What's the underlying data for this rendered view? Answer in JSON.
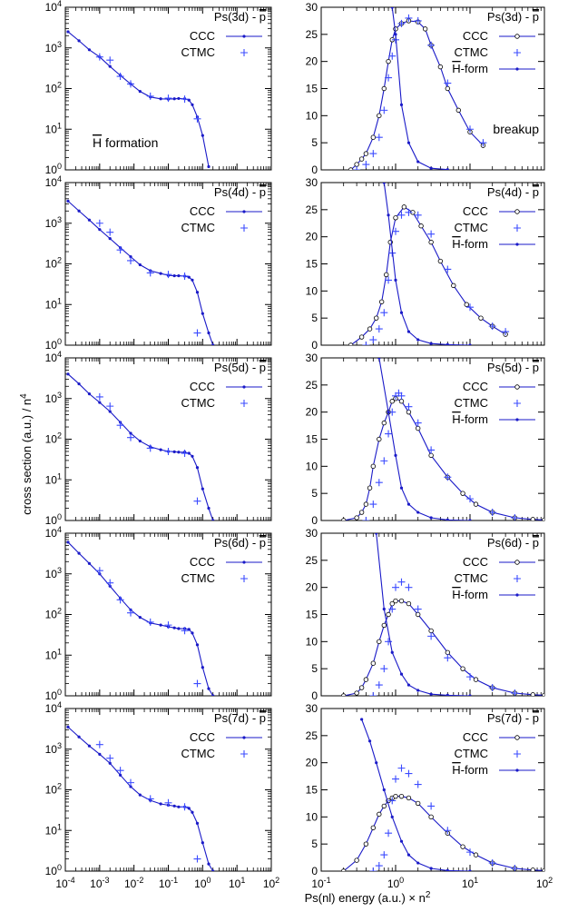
{
  "colors": {
    "ccc": "#1a1ac8",
    "ctmc": "#3b4bff",
    "hform": "#1a1ac8",
    "frame": "#000000"
  },
  "layout_text": {
    "ylabel": "cross section (a.u.) / n",
    "ylabel_sup": "4",
    "xlabel": "Ps(nl) energy (a.u.) × n",
    "xlabel_sup": "2",
    "legend_ctmc": "CTMC",
    "legend_ccc": "CCC",
    "legend_hform": "H-form",
    "annot_hform": "H formation",
    "annot_breakup": "breakup"
  },
  "left_axis": {
    "xscale": "log",
    "yscale": "log",
    "xlim": [
      0.0001,
      100
    ],
    "ylim": [
      1,
      10000
    ],
    "xticks": [
      "10^-4",
      "10^-3",
      "10^-2",
      "10^-1",
      "10^0",
      "10^1",
      "10^2"
    ],
    "yticks": [
      "10^0",
      "10^1",
      "10^2",
      "10^3",
      "10^4"
    ]
  },
  "right_axis": {
    "xscale": "log",
    "yscale": "linear",
    "xlim": [
      0.1,
      100
    ],
    "ylim": [
      0,
      30
    ],
    "xticks": [
      "10^-1",
      "10^0",
      "10^1",
      "10^2"
    ],
    "yticks": [
      "0",
      "5",
      "10",
      "15",
      "20",
      "25",
      "30"
    ]
  },
  "chart_data": [
    {
      "type": "line",
      "panel": "left",
      "title": "Ps(3d) - p",
      "annotation": "H formation",
      "series": [
        {
          "name": "CCC",
          "x": [
            0.00012,
            0.00025,
            0.0005,
            0.001,
            0.002,
            0.004,
            0.008,
            0.015,
            0.03,
            0.06,
            0.1,
            0.15,
            0.2,
            0.3,
            0.4,
            0.5,
            0.7,
            1.0,
            1.5
          ],
          "values": [
            2500,
            1500,
            900,
            600,
            350,
            210,
            130,
            85,
            62,
            56,
            55,
            56,
            57,
            56,
            52,
            40,
            20,
            7,
            1.2
          ]
        },
        {
          "name": "CTMC",
          "x": [
            0.001,
            0.002,
            0.004,
            0.008,
            0.03,
            0.1,
            0.3,
            0.7
          ],
          "values": [
            600,
            500,
            200,
            130,
            65,
            58,
            55,
            18
          ]
        }
      ]
    },
    {
      "type": "line",
      "panel": "right",
      "title": "Ps(3d) - p",
      "annotation": "breakup",
      "series": [
        {
          "name": "CCC",
          "x": [
            0.25,
            0.3,
            0.35,
            0.4,
            0.5,
            0.6,
            0.7,
            0.8,
            0.9,
            1.0,
            1.2,
            1.5,
            2.0,
            2.5,
            3.0,
            4.0,
            5.0,
            7.0,
            10.0,
            15.0
          ],
          "values": [
            0,
            1,
            2,
            3,
            6,
            10,
            15,
            20,
            24,
            26,
            27,
            27.5,
            27.3,
            26,
            23,
            19,
            15,
            11,
            7,
            4.5
          ]
        },
        {
          "name": "CTMC",
          "x": [
            0.3,
            0.4,
            0.5,
            0.6,
            0.7,
            0.8,
            0.9,
            1.0,
            1.2,
            1.5,
            2.0,
            3.0,
            5.0,
            10.0,
            15.0
          ],
          "values": [
            0,
            1,
            3,
            6,
            11,
            17,
            21,
            24,
            27,
            28,
            27.5,
            23,
            16,
            7.5,
            5
          ]
        },
        {
          "name": "H-form",
          "x": [
            0.9,
            1.0,
            1.2,
            1.5,
            2.0,
            3.0,
            5.0
          ],
          "values": [
            30,
            25,
            12,
            5,
            1.5,
            0.3,
            0.05
          ]
        }
      ]
    },
    {
      "type": "line",
      "panel": "left",
      "title": "Ps(4d) - p",
      "series": [
        {
          "name": "CCC",
          "x": [
            0.00012,
            0.00025,
            0.0005,
            0.001,
            0.002,
            0.004,
            0.008,
            0.015,
            0.03,
            0.06,
            0.1,
            0.15,
            0.2,
            0.3,
            0.4,
            0.5,
            0.7,
            1.0,
            1.5,
            2.0
          ],
          "values": [
            3500,
            2000,
            1200,
            700,
            420,
            250,
            150,
            95,
            68,
            58,
            52,
            51,
            51,
            50,
            47,
            40,
            20,
            6,
            2,
            1
          ]
        },
        {
          "name": "CTMC",
          "x": [
            0.001,
            0.002,
            0.004,
            0.008,
            0.03,
            0.1,
            0.3,
            0.7
          ],
          "values": [
            1000,
            600,
            220,
            120,
            60,
            55,
            50,
            2
          ]
        }
      ]
    },
    {
      "type": "line",
      "panel": "right",
      "title": "Ps(4d) - p",
      "series": [
        {
          "name": "CCC",
          "x": [
            0.25,
            0.35,
            0.45,
            0.55,
            0.65,
            0.75,
            0.85,
            1.0,
            1.3,
            1.7,
            2.2,
            3.0,
            4.0,
            6.0,
            9.0,
            14.0,
            20.0,
            30.0
          ],
          "values": [
            0,
            1.5,
            3,
            5,
            8,
            13,
            19,
            23.5,
            25.5,
            24.5,
            22,
            19,
            15.5,
            11,
            7.5,
            5,
            3.5,
            2
          ]
        },
        {
          "name": "CTMC",
          "x": [
            0.4,
            0.5,
            0.6,
            0.7,
            0.8,
            0.9,
            1.0,
            1.2,
            1.5,
            2.0,
            3.0,
            5.0,
            10.0,
            20.0,
            30.0
          ],
          "values": [
            0,
            1,
            3,
            6,
            12,
            17,
            21,
            24,
            24.5,
            24,
            20.5,
            14,
            7,
            3.5,
            2.5
          ]
        },
        {
          "name": "H-form",
          "x": [
            0.7,
            0.8,
            1.0,
            1.2,
            1.5,
            2.0,
            3.0,
            5.0,
            10.0
          ],
          "values": [
            30,
            24,
            12,
            6,
            2.5,
            1,
            0.3,
            0.1,
            0
          ]
        }
      ]
    },
    {
      "type": "line",
      "panel": "left",
      "title": "Ps(5d) - p",
      "series": [
        {
          "name": "CCC",
          "x": [
            0.00012,
            0.00025,
            0.0005,
            0.001,
            0.002,
            0.004,
            0.008,
            0.015,
            0.03,
            0.06,
            0.1,
            0.15,
            0.2,
            0.3,
            0.4,
            0.5,
            0.7,
            1.0,
            1.5,
            2.0
          ],
          "values": [
            4000,
            2300,
            1300,
            800,
            480,
            260,
            140,
            90,
            65,
            55,
            50,
            49,
            48,
            48,
            45,
            38,
            20,
            6,
            2,
            1
          ]
        },
        {
          "name": "CTMC",
          "x": [
            0.001,
            0.002,
            0.004,
            0.008,
            0.03,
            0.1,
            0.3,
            0.7
          ],
          "values": [
            1100,
            650,
            220,
            110,
            60,
            50,
            45,
            3
          ]
        }
      ]
    },
    {
      "type": "line",
      "panel": "right",
      "title": "Ps(5d) - p",
      "series": [
        {
          "name": "CCC",
          "x": [
            0.2,
            0.3,
            0.35,
            0.4,
            0.45,
            0.5,
            0.6,
            0.7,
            0.8,
            0.9,
            1.0,
            1.2,
            1.5,
            2.0,
            3.0,
            5.0,
            8.0,
            12.0,
            20.0,
            40.0,
            70.0,
            100.0
          ],
          "values": [
            0,
            0.5,
            1.5,
            3,
            6,
            10,
            15,
            18,
            20,
            22,
            22.5,
            22,
            20,
            17,
            12,
            8,
            5,
            3,
            1.5,
            0.5,
            0.2,
            0.1
          ]
        },
        {
          "name": "CTMC",
          "x": [
            0.4,
            0.5,
            0.6,
            0.7,
            0.8,
            0.9,
            1.0,
            1.1,
            1.2,
            1.5,
            2.0,
            3.0,
            5.0,
            10.0,
            20.0,
            40.0
          ],
          "values": [
            0,
            3,
            7,
            11,
            16,
            20,
            23,
            23.5,
            23,
            21,
            18,
            13,
            8,
            4,
            1.5,
            0.5
          ]
        },
        {
          "name": "H-form",
          "x": [
            0.6,
            0.8,
            1.0,
            1.2,
            1.5,
            2.0,
            3.0,
            5.0,
            10.0
          ],
          "values": [
            30,
            20,
            12,
            6,
            3,
            1.5,
            0.5,
            0.1,
            0
          ]
        }
      ]
    },
    {
      "type": "line",
      "panel": "left",
      "title": "Ps(6d) - p",
      "series": [
        {
          "name": "CCC",
          "x": [
            0.00012,
            0.00025,
            0.0005,
            0.001,
            0.002,
            0.004,
            0.008,
            0.015,
            0.03,
            0.06,
            0.1,
            0.15,
            0.2,
            0.3,
            0.4,
            0.5,
            0.7,
            1.0,
            1.5,
            2.0
          ],
          "values": [
            6000,
            3200,
            1800,
            1000,
            500,
            250,
            130,
            85,
            62,
            55,
            50,
            47,
            45,
            45,
            43,
            35,
            18,
            5,
            1.5,
            1
          ]
        },
        {
          "name": "CTMC",
          "x": [
            0.001,
            0.002,
            0.004,
            0.008,
            0.03,
            0.1,
            0.3,
            0.7
          ],
          "values": [
            1200,
            600,
            230,
            110,
            65,
            55,
            40,
            2
          ]
        }
      ]
    },
    {
      "type": "line",
      "panel": "right",
      "title": "Ps(6d) - p",
      "series": [
        {
          "name": "CCC",
          "x": [
            0.2,
            0.3,
            0.35,
            0.4,
            0.5,
            0.6,
            0.7,
            0.8,
            0.9,
            1.0,
            1.2,
            1.5,
            2.0,
            3.0,
            5.0,
            8.0,
            12.0,
            20.0,
            40.0,
            70.0,
            100.0
          ],
          "values": [
            0,
            0.5,
            1.5,
            3,
            6,
            10,
            13,
            15,
            17,
            17.5,
            17.5,
            17,
            15,
            12,
            8,
            5,
            3,
            1.5,
            0.5,
            0.2,
            0.1
          ]
        },
        {
          "name": "CTMC",
          "x": [
            0.5,
            0.6,
            0.7,
            0.8,
            0.9,
            1.0,
            1.2,
            1.5,
            2.0,
            3.0,
            5.0,
            10.0,
            20.0,
            40.0
          ],
          "values": [
            0,
            2,
            5,
            10,
            16,
            20,
            21,
            20,
            16,
            11,
            7,
            3.5,
            1.5,
            0.5
          ]
        },
        {
          "name": "H-form",
          "x": [
            0.55,
            0.7,
            0.9,
            1.2,
            1.5,
            2.0,
            3.0,
            5.0,
            10.0
          ],
          "values": [
            30,
            16,
            8,
            4,
            2,
            1,
            0.3,
            0.1,
            0
          ]
        }
      ]
    },
    {
      "type": "line",
      "panel": "left",
      "title": "Ps(7d) - p",
      "series": [
        {
          "name": "CCC",
          "x": [
            0.00012,
            0.00025,
            0.0005,
            0.001,
            0.002,
            0.004,
            0.008,
            0.015,
            0.03,
            0.06,
            0.1,
            0.15,
            0.2,
            0.3,
            0.4,
            0.5,
            0.7,
            1.0,
            1.5,
            2.0
          ],
          "values": [
            3500,
            2000,
            1200,
            750,
            450,
            230,
            120,
            75,
            55,
            45,
            42,
            40,
            38,
            38,
            35,
            28,
            15,
            5,
            1.5,
            1
          ]
        },
        {
          "name": "CTMC",
          "x": [
            0.001,
            0.002,
            0.004,
            0.008,
            0.03,
            0.1,
            0.3,
            0.7
          ],
          "values": [
            1300,
            600,
            300,
            150,
            60,
            48,
            38,
            2
          ]
        }
      ]
    },
    {
      "type": "line",
      "panel": "right",
      "title": "Ps(7d) - p",
      "series": [
        {
          "name": "CCC",
          "x": [
            0.2,
            0.3,
            0.4,
            0.5,
            0.6,
            0.7,
            0.8,
            0.9,
            1.0,
            1.2,
            1.5,
            2.0,
            3.0,
            5.0,
            8.0,
            12.0,
            20.0,
            40.0,
            70.0,
            100.0
          ],
          "values": [
            0,
            2,
            5,
            8,
            10.5,
            12,
            13,
            13.5,
            13.8,
            13.8,
            13.5,
            12.5,
            10,
            7,
            4.5,
            3,
            1.5,
            0.5,
            0.2,
            0.1
          ]
        },
        {
          "name": "CTMC",
          "x": [
            0.5,
            0.6,
            0.7,
            0.8,
            0.9,
            1.0,
            1.2,
            1.5,
            2.0,
            3.0,
            5.0,
            10.0,
            20.0,
            40.0
          ],
          "values": [
            0,
            1,
            3,
            7,
            13,
            17,
            19,
            18,
            16,
            12,
            7.5,
            3.5,
            1.5,
            0.5
          ]
        },
        {
          "name": "H-form",
          "x": [
            0.35,
            0.45,
            0.55,
            0.7,
            0.9,
            1.2,
            1.5,
            2.0,
            3.0,
            5.0,
            10.0
          ],
          "values": [
            28,
            24,
            20,
            15,
            10,
            5.5,
            3,
            1.5,
            0.5,
            0.1,
            0
          ]
        }
      ]
    }
  ]
}
